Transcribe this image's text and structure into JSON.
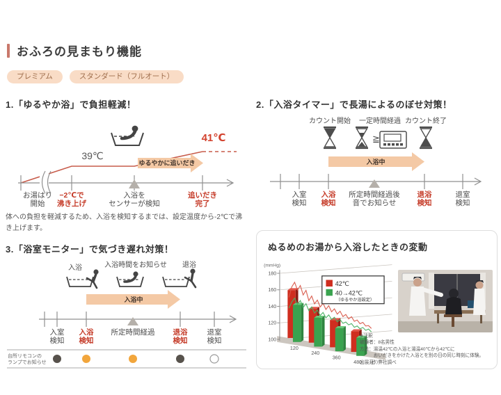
{
  "header": {
    "title": "おふろの見まもり機能",
    "tags": [
      {
        "label": "プレミアム"
      },
      {
        "label": "スタンダード（フルオート）"
      }
    ]
  },
  "section1": {
    "heading": "1.「ゆるやか浴」で負担軽減！",
    "temp_low": "39℃",
    "temp_high": "41℃",
    "arrow_label": "ゆるやかに追いだき",
    "steps": [
      {
        "line1": "お湯はり",
        "line2": "開始"
      },
      {
        "line1": "−2℃で",
        "line2": "沸き上げ"
      },
      {
        "line1": "入浴を",
        "line2": "センサーが検知"
      },
      {
        "line1": "追いだき",
        "line2": "完了"
      }
    ],
    "note": "体への負担を軽減するため、入浴を検知するまでは、設定温度から-2℃で沸き上げます。"
  },
  "section2": {
    "heading": "2.「入浴タイマー」で長湯によるのぼせ対策！",
    "icon_labels": [
      "カウント開始",
      "一定時間経過",
      "カウント終了"
    ],
    "gte_symbol": "≧",
    "arrow_label": "入浴中",
    "steps": [
      {
        "line1": "入室",
        "line2": "検知"
      },
      {
        "line1": "入浴",
        "line2": "検知"
      },
      {
        "line1": "所定時間経過後",
        "line2": "音でお知らせ"
      },
      {
        "line1": "退浴",
        "line2": "検知"
      },
      {
        "line1": "退室",
        "line2": "検知"
      }
    ]
  },
  "section3": {
    "heading": "3.「浴室モニター」で気づき遅れ対策！",
    "icon_labels": [
      "入浴",
      "入浴時間をお知らせ",
      "退浴"
    ],
    "arrow_label": "入浴中",
    "steps": [
      {
        "line1": "入室",
        "line2": "検知"
      },
      {
        "line1": "入浴",
        "line2": "検知"
      },
      {
        "line1": "所定時間経過",
        "line2": ""
      },
      {
        "line1": "退浴",
        "line2": "検知"
      },
      {
        "line1": "退室",
        "line2": "検知"
      }
    ],
    "lamp_label_line1": "台所リモコンの",
    "lamp_label_line2": "ランプでお知らせ",
    "lamps": [
      "dark",
      "orange",
      "orange",
      "dark",
      "off"
    ]
  },
  "chart_panel": {
    "title": "ぬるめのお湯から入浴したときの変動",
    "annotation": [
      "※注釈",
      "被験者：8名男性",
      "方法：湯温42℃の入浴と湯温40℃から42℃に",
      "　　　おいだきをかけた入浴とを別の日の同じ時刻に体験。",
      "出展元：弊社調べ"
    ]
  },
  "chart_data": {
    "type": "bar",
    "title": "ぬるめのお湯から入浴したときの変動",
    "ylabel": "(mmHg)",
    "xlabel": "（秒）",
    "ylim": [
      100,
      180
    ],
    "yticks": [
      180,
      160,
      140,
      120,
      100
    ],
    "categories": [
      "120",
      "240",
      "360",
      "480"
    ],
    "series": [
      {
        "name": "42℃",
        "color": "#cf2e1f",
        "side": "#8e1d14",
        "top": "#e4564a",
        "values": [
          158,
          141,
          133,
          125
        ]
      },
      {
        "name": "40→42℃（ゆるやか浴設定）",
        "color": "#3aa34f",
        "side": "#2f8440",
        "top": "#67c97b",
        "values": [
          145,
          135,
          128,
          122
        ]
      }
    ],
    "traces": [
      {
        "color": "#d8584a",
        "values": [
          151,
          164,
          170,
          161,
          167,
          156,
          162,
          150,
          156,
          147,
          152,
          144,
          149,
          142,
          147,
          140,
          144,
          138,
          142,
          136,
          139,
          134,
          137,
          132,
          134,
          130,
          132,
          128,
          129,
          126
        ]
      },
      {
        "color": "#49b063",
        "values": [
          139,
          147,
          152,
          145,
          150,
          142,
          147,
          139,
          144,
          137,
          141,
          135,
          139,
          133,
          137,
          132,
          135,
          130,
          133,
          129,
          131,
          128,
          130,
          126,
          128,
          125,
          127,
          124,
          126,
          123
        ]
      }
    ],
    "legend": [
      {
        "label": "42℃",
        "sub": "",
        "color": "#cf2e1f"
      },
      {
        "label": "40→42℃",
        "sub": "（ゆるやか浴設定）",
        "color": "#3aa34f"
      }
    ],
    "legend_position": "top-right",
    "grid": true
  },
  "colors": {
    "accent": "#c9786b",
    "tag_bg": "#f9dcc6",
    "tag_text": "#9f6e4c",
    "red_text": "#c53b28",
    "diagram_line_red": "#c75b4a",
    "arrow_fill": "#f4c9a5",
    "lamp_orange": "#f2a63c",
    "lamp_dark": "#57524c"
  }
}
